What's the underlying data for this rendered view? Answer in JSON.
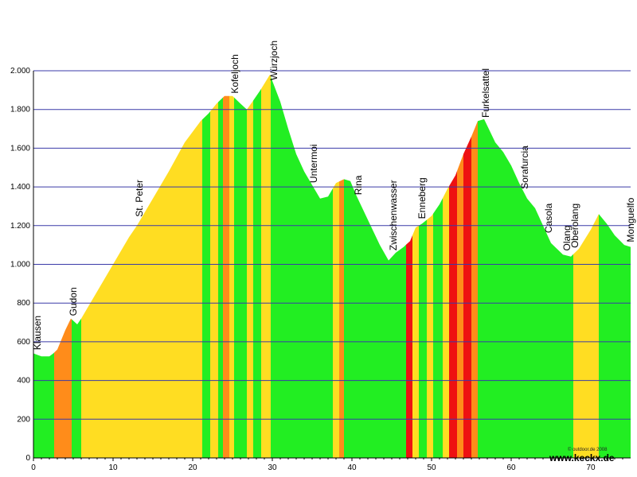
{
  "chart_data": {
    "type": "area",
    "xlim": [
      0,
      75
    ],
    "ylim": [
      0,
      2000
    ],
    "xticks": [
      0,
      10,
      20,
      30,
      40,
      50,
      60,
      70
    ],
    "yticks": [
      0,
      200,
      400,
      600,
      800,
      1000,
      1200,
      1400,
      1600,
      1800,
      2000
    ],
    "ytick_labels": [
      "0",
      "200",
      "400",
      "600",
      "800",
      "1.000",
      "1.200",
      "1.400",
      "1.600",
      "1.800",
      "2.000"
    ],
    "grid": "horizontal",
    "gradient_colors": {
      "flat": "#22ee22",
      "moderate": "#ffdd22",
      "steep": "#ff8c1a",
      "very_steep": "#ee1111",
      "descent": "#22ee22"
    },
    "profile": {
      "x": [
        0,
        1,
        2,
        2.5,
        3,
        4,
        4.7,
        5.5,
        6,
        8,
        10,
        12,
        13,
        15,
        17,
        19,
        21,
        22,
        23,
        24,
        25,
        26,
        26.8,
        27.5,
        28.5,
        29.7,
        31,
        32,
        33,
        34,
        35,
        36,
        37,
        38,
        39,
        39.8,
        40.5,
        42,
        43.5,
        44.6,
        45.5,
        46.5,
        47.3,
        48,
        48.8,
        50,
        51,
        52,
        53,
        54,
        55,
        55.8,
        56.6,
        58,
        59,
        60,
        61,
        62,
        63,
        64,
        65,
        66.5,
        67.5,
        68.5,
        70,
        71,
        72,
        73,
        74.2,
        75
      ],
      "y": [
        540,
        525,
        525,
        540,
        560,
        660,
        720,
        690,
        720,
        860,
        1000,
        1140,
        1200,
        1340,
        1480,
        1630,
        1740,
        1780,
        1830,
        1870,
        1870,
        1830,
        1800,
        1840,
        1900,
        1980,
        1840,
        1700,
        1570,
        1480,
        1410,
        1340,
        1350,
        1420,
        1440,
        1430,
        1360,
        1230,
        1100,
        1020,
        1060,
        1090,
        1120,
        1190,
        1210,
        1250,
        1310,
        1390,
        1460,
        1570,
        1660,
        1740,
        1750,
        1630,
        1580,
        1510,
        1420,
        1340,
        1290,
        1200,
        1110,
        1050,
        1040,
        1080,
        1180,
        1260,
        1210,
        1150,
        1100,
        1090
      ]
    },
    "bands": [
      {
        "from": 0,
        "to": 2.6,
        "level": "flat"
      },
      {
        "from": 2.6,
        "to": 4.8,
        "level": "steep"
      },
      {
        "from": 4.8,
        "to": 6,
        "level": "flat"
      },
      {
        "from": 6,
        "to": 21.2,
        "level": "moderate"
      },
      {
        "from": 21.2,
        "to": 22.2,
        "level": "flat"
      },
      {
        "from": 22.2,
        "to": 23.2,
        "level": "moderate"
      },
      {
        "from": 23.2,
        "to": 23.8,
        "level": "flat"
      },
      {
        "from": 23.8,
        "to": 24.6,
        "level": "steep"
      },
      {
        "from": 24.6,
        "to": 25.2,
        "level": "moderate"
      },
      {
        "from": 25.2,
        "to": 26.8,
        "level": "flat"
      },
      {
        "from": 26.8,
        "to": 27.6,
        "level": "moderate"
      },
      {
        "from": 27.6,
        "to": 28.6,
        "level": "flat"
      },
      {
        "from": 28.6,
        "to": 29.8,
        "level": "moderate"
      },
      {
        "from": 29.8,
        "to": 37.6,
        "level": "flat"
      },
      {
        "from": 37.6,
        "to": 38.4,
        "level": "moderate"
      },
      {
        "from": 38.4,
        "to": 39.0,
        "level": "steep"
      },
      {
        "from": 39.0,
        "to": 46.8,
        "level": "flat"
      },
      {
        "from": 46.8,
        "to": 47.6,
        "level": "very_steep"
      },
      {
        "from": 47.6,
        "to": 48.4,
        "level": "moderate"
      },
      {
        "from": 48.4,
        "to": 49.4,
        "level": "flat"
      },
      {
        "from": 49.4,
        "to": 50.2,
        "level": "moderate"
      },
      {
        "from": 50.2,
        "to": 51.4,
        "level": "flat"
      },
      {
        "from": 51.4,
        "to": 52.2,
        "level": "moderate"
      },
      {
        "from": 52.2,
        "to": 53.2,
        "level": "very_steep"
      },
      {
        "from": 53.2,
        "to": 54.0,
        "level": "steep"
      },
      {
        "from": 54.0,
        "to": 55.0,
        "level": "very_steep"
      },
      {
        "from": 55.0,
        "to": 55.8,
        "level": "steep"
      },
      {
        "from": 55.8,
        "to": 67.8,
        "level": "flat"
      },
      {
        "from": 67.8,
        "to": 71.0,
        "level": "moderate"
      },
      {
        "from": 71.0,
        "to": 75,
        "level": "flat"
      }
    ],
    "places": [
      {
        "name": "Klausen",
        "km": 0.5
      },
      {
        "name": "Gudon",
        "km": 5
      },
      {
        "name": "St. Peter",
        "km": 13.3
      },
      {
        "name": "Kofeljoch",
        "km": 25.3
      },
      {
        "name": "Würzjoch",
        "km": 30.2
      },
      {
        "name": "Untermoi",
        "km": 35.2
      },
      {
        "name": "Rina",
        "km": 40.8
      },
      {
        "name": "Zwischenwasser",
        "km": 45.2
      },
      {
        "name": "Enneberg",
        "km": 48.8
      },
      {
        "name": "Furkelsattel",
        "km": 56.8
      },
      {
        "name": "Sorafurcia",
        "km": 61.7
      },
      {
        "name": "Casola",
        "km": 64.7
      },
      {
        "name": "Olang",
        "km": 67.0
      },
      {
        "name": "Oberolang",
        "km": 68.0
      },
      {
        "name": "Monguelfo",
        "km": 75.0
      }
    ]
  },
  "footer": {
    "copyright": "© outdoor.de 2008",
    "website": "www.keckx.de"
  }
}
